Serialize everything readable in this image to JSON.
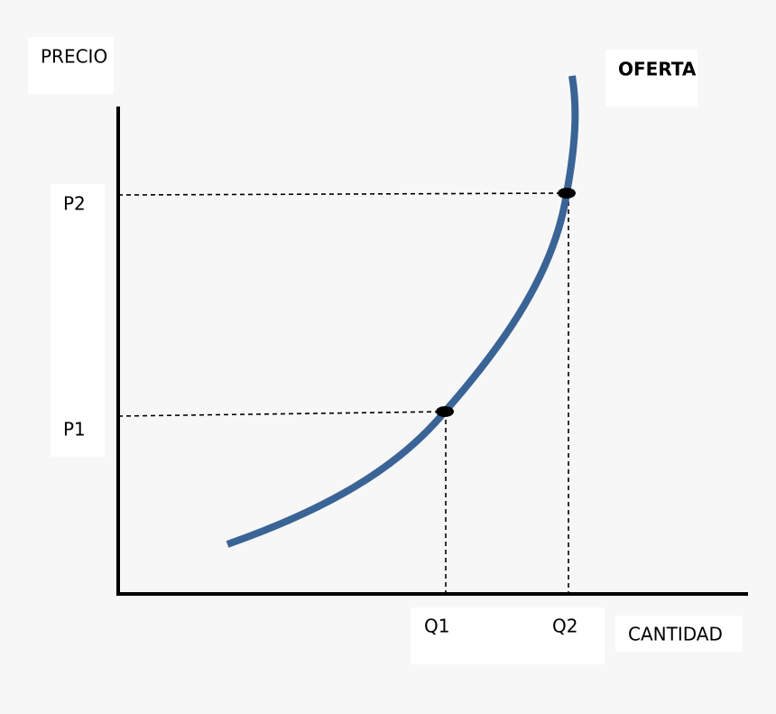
{
  "y_axis_label": "PRECIO",
  "x_axis_label": "CANTIDAD",
  "curve_label": "OFERTA",
  "price_labels": [
    "P1",
    "P2"
  ],
  "quantity_labels": [
    "Q1",
    "Q2"
  ]
}
